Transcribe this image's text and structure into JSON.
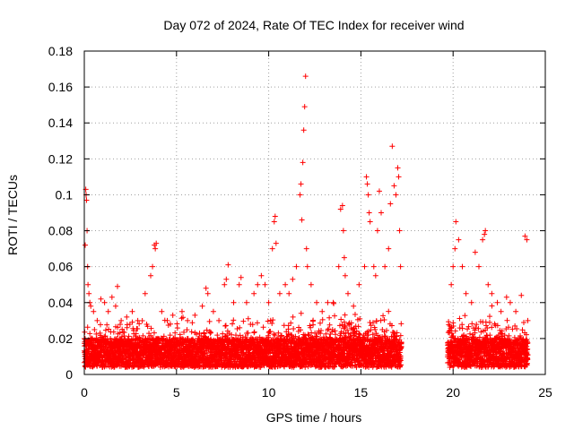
{
  "chart_data": {
    "type": "scatter",
    "title": "Day 072 of 2024, Rate Of TEC Index for receiver wind",
    "xlabel": "GPS time / hours",
    "ylabel": "ROTI / TECUs",
    "xlim": [
      0,
      25
    ],
    "ylim": [
      0,
      0.18
    ],
    "xticks": [
      0,
      5,
      10,
      15,
      20,
      25
    ],
    "xtick_labels": [
      "0",
      "5",
      "10",
      "15",
      "20",
      "25"
    ],
    "yticks": [
      0,
      0.02,
      0.04,
      0.06,
      0.08,
      0.1,
      0.12,
      0.14,
      0.16,
      0.18
    ],
    "ytick_labels": [
      "0",
      "0.02",
      "0.04",
      "0.06",
      "0.08",
      "0.1",
      "0.12",
      "0.14",
      "0.16",
      "0.18"
    ],
    "grid": true,
    "marker": "+",
    "color": "#ff0000",
    "data_gap_hours": [
      17.2,
      19.7
    ],
    "series": [
      {
        "name": "ROTI",
        "points": [
          [
            0.05,
            0.072
          ],
          [
            0.08,
            0.103
          ],
          [
            0.1,
            0.1
          ],
          [
            0.12,
            0.097
          ],
          [
            0.15,
            0.08
          ],
          [
            0.18,
            0.06
          ],
          [
            0.2,
            0.05
          ],
          [
            0.25,
            0.045
          ],
          [
            0.3,
            0.04
          ],
          [
            0.35,
            0.038
          ],
          [
            0.5,
            0.035
          ],
          [
            0.7,
            0.03
          ],
          [
            0.9,
            0.042
          ],
          [
            1.1,
            0.04
          ],
          [
            1.3,
            0.035
          ],
          [
            1.5,
            0.043
          ],
          [
            1.7,
            0.038
          ],
          [
            1.8,
            0.049
          ],
          [
            2.0,
            0.03
          ],
          [
            2.3,
            0.032
          ],
          [
            2.6,
            0.035
          ],
          [
            2.9,
            0.03
          ],
          [
            3.3,
            0.045
          ],
          [
            3.6,
            0.055
          ],
          [
            3.7,
            0.06
          ],
          [
            3.8,
            0.072
          ],
          [
            3.85,
            0.07
          ],
          [
            3.9,
            0.073
          ],
          [
            4.2,
            0.035
          ],
          [
            4.5,
            0.03
          ],
          [
            4.8,
            0.033
          ],
          [
            5.3,
            0.035
          ],
          [
            5.6,
            0.03
          ],
          [
            6.0,
            0.033
          ],
          [
            6.4,
            0.038
          ],
          [
            6.6,
            0.048
          ],
          [
            6.7,
            0.045
          ],
          [
            7.0,
            0.035
          ],
          [
            7.3,
            0.03
          ],
          [
            7.6,
            0.05
          ],
          [
            7.7,
            0.053
          ],
          [
            7.8,
            0.061
          ],
          [
            8.1,
            0.04
          ],
          [
            8.4,
            0.05
          ],
          [
            8.5,
            0.054
          ],
          [
            8.8,
            0.04
          ],
          [
            9.2,
            0.045
          ],
          [
            9.4,
            0.05
          ],
          [
            9.6,
            0.055
          ],
          [
            9.8,
            0.05
          ],
          [
            10.0,
            0.04
          ],
          [
            10.2,
            0.07
          ],
          [
            10.3,
            0.085
          ],
          [
            10.35,
            0.088
          ],
          [
            10.4,
            0.073
          ],
          [
            10.6,
            0.045
          ],
          [
            10.9,
            0.05
          ],
          [
            11.1,
            0.045
          ],
          [
            11.3,
            0.053
          ],
          [
            11.5,
            0.06
          ],
          [
            11.7,
            0.1
          ],
          [
            11.75,
            0.106
          ],
          [
            11.8,
            0.086
          ],
          [
            11.85,
            0.118
          ],
          [
            11.9,
            0.136
          ],
          [
            11.95,
            0.149
          ],
          [
            12.0,
            0.166
          ],
          [
            12.05,
            0.07
          ],
          [
            12.1,
            0.06
          ],
          [
            12.3,
            0.05
          ],
          [
            12.6,
            0.04
          ],
          [
            12.9,
            0.035
          ],
          [
            13.2,
            0.04
          ],
          [
            13.5,
            0.04
          ],
          [
            13.8,
            0.06
          ],
          [
            13.9,
            0.092
          ],
          [
            14.0,
            0.094
          ],
          [
            14.05,
            0.08
          ],
          [
            14.1,
            0.065
          ],
          [
            14.15,
            0.055
          ],
          [
            14.3,
            0.045
          ],
          [
            14.6,
            0.038
          ],
          [
            14.9,
            0.05
          ],
          [
            15.2,
            0.06
          ],
          [
            15.3,
            0.11
          ],
          [
            15.35,
            0.106
          ],
          [
            15.4,
            0.1
          ],
          [
            15.45,
            0.09
          ],
          [
            15.5,
            0.085
          ],
          [
            15.7,
            0.06
          ],
          [
            15.8,
            0.055
          ],
          [
            15.9,
            0.08
          ],
          [
            16.0,
            0.102
          ],
          [
            16.1,
            0.09
          ],
          [
            16.3,
            0.06
          ],
          [
            16.5,
            0.07
          ],
          [
            16.6,
            0.095
          ],
          [
            16.7,
            0.127
          ],
          [
            16.8,
            0.105
          ],
          [
            16.9,
            0.1
          ],
          [
            17.0,
            0.115
          ],
          [
            17.05,
            0.11
          ],
          [
            17.1,
            0.08
          ],
          [
            17.15,
            0.06
          ],
          [
            19.9,
            0.05
          ],
          [
            20.0,
            0.06
          ],
          [
            20.1,
            0.07
          ],
          [
            20.15,
            0.085
          ],
          [
            20.3,
            0.075
          ],
          [
            20.5,
            0.06
          ],
          [
            20.7,
            0.045
          ],
          [
            21.0,
            0.04
          ],
          [
            21.2,
            0.068
          ],
          [
            21.4,
            0.06
          ],
          [
            21.6,
            0.075
          ],
          [
            21.7,
            0.078
          ],
          [
            21.75,
            0.08
          ],
          [
            21.9,
            0.05
          ],
          [
            22.1,
            0.045
          ],
          [
            22.4,
            0.04
          ],
          [
            22.6,
            0.035
          ],
          [
            22.9,
            0.043
          ],
          [
            23.1,
            0.04
          ],
          [
            23.4,
            0.035
          ],
          [
            23.7,
            0.044
          ],
          [
            23.9,
            0.077
          ],
          [
            24.0,
            0.075
          ],
          [
            24.05,
            0.03
          ]
        ]
      }
    ]
  }
}
